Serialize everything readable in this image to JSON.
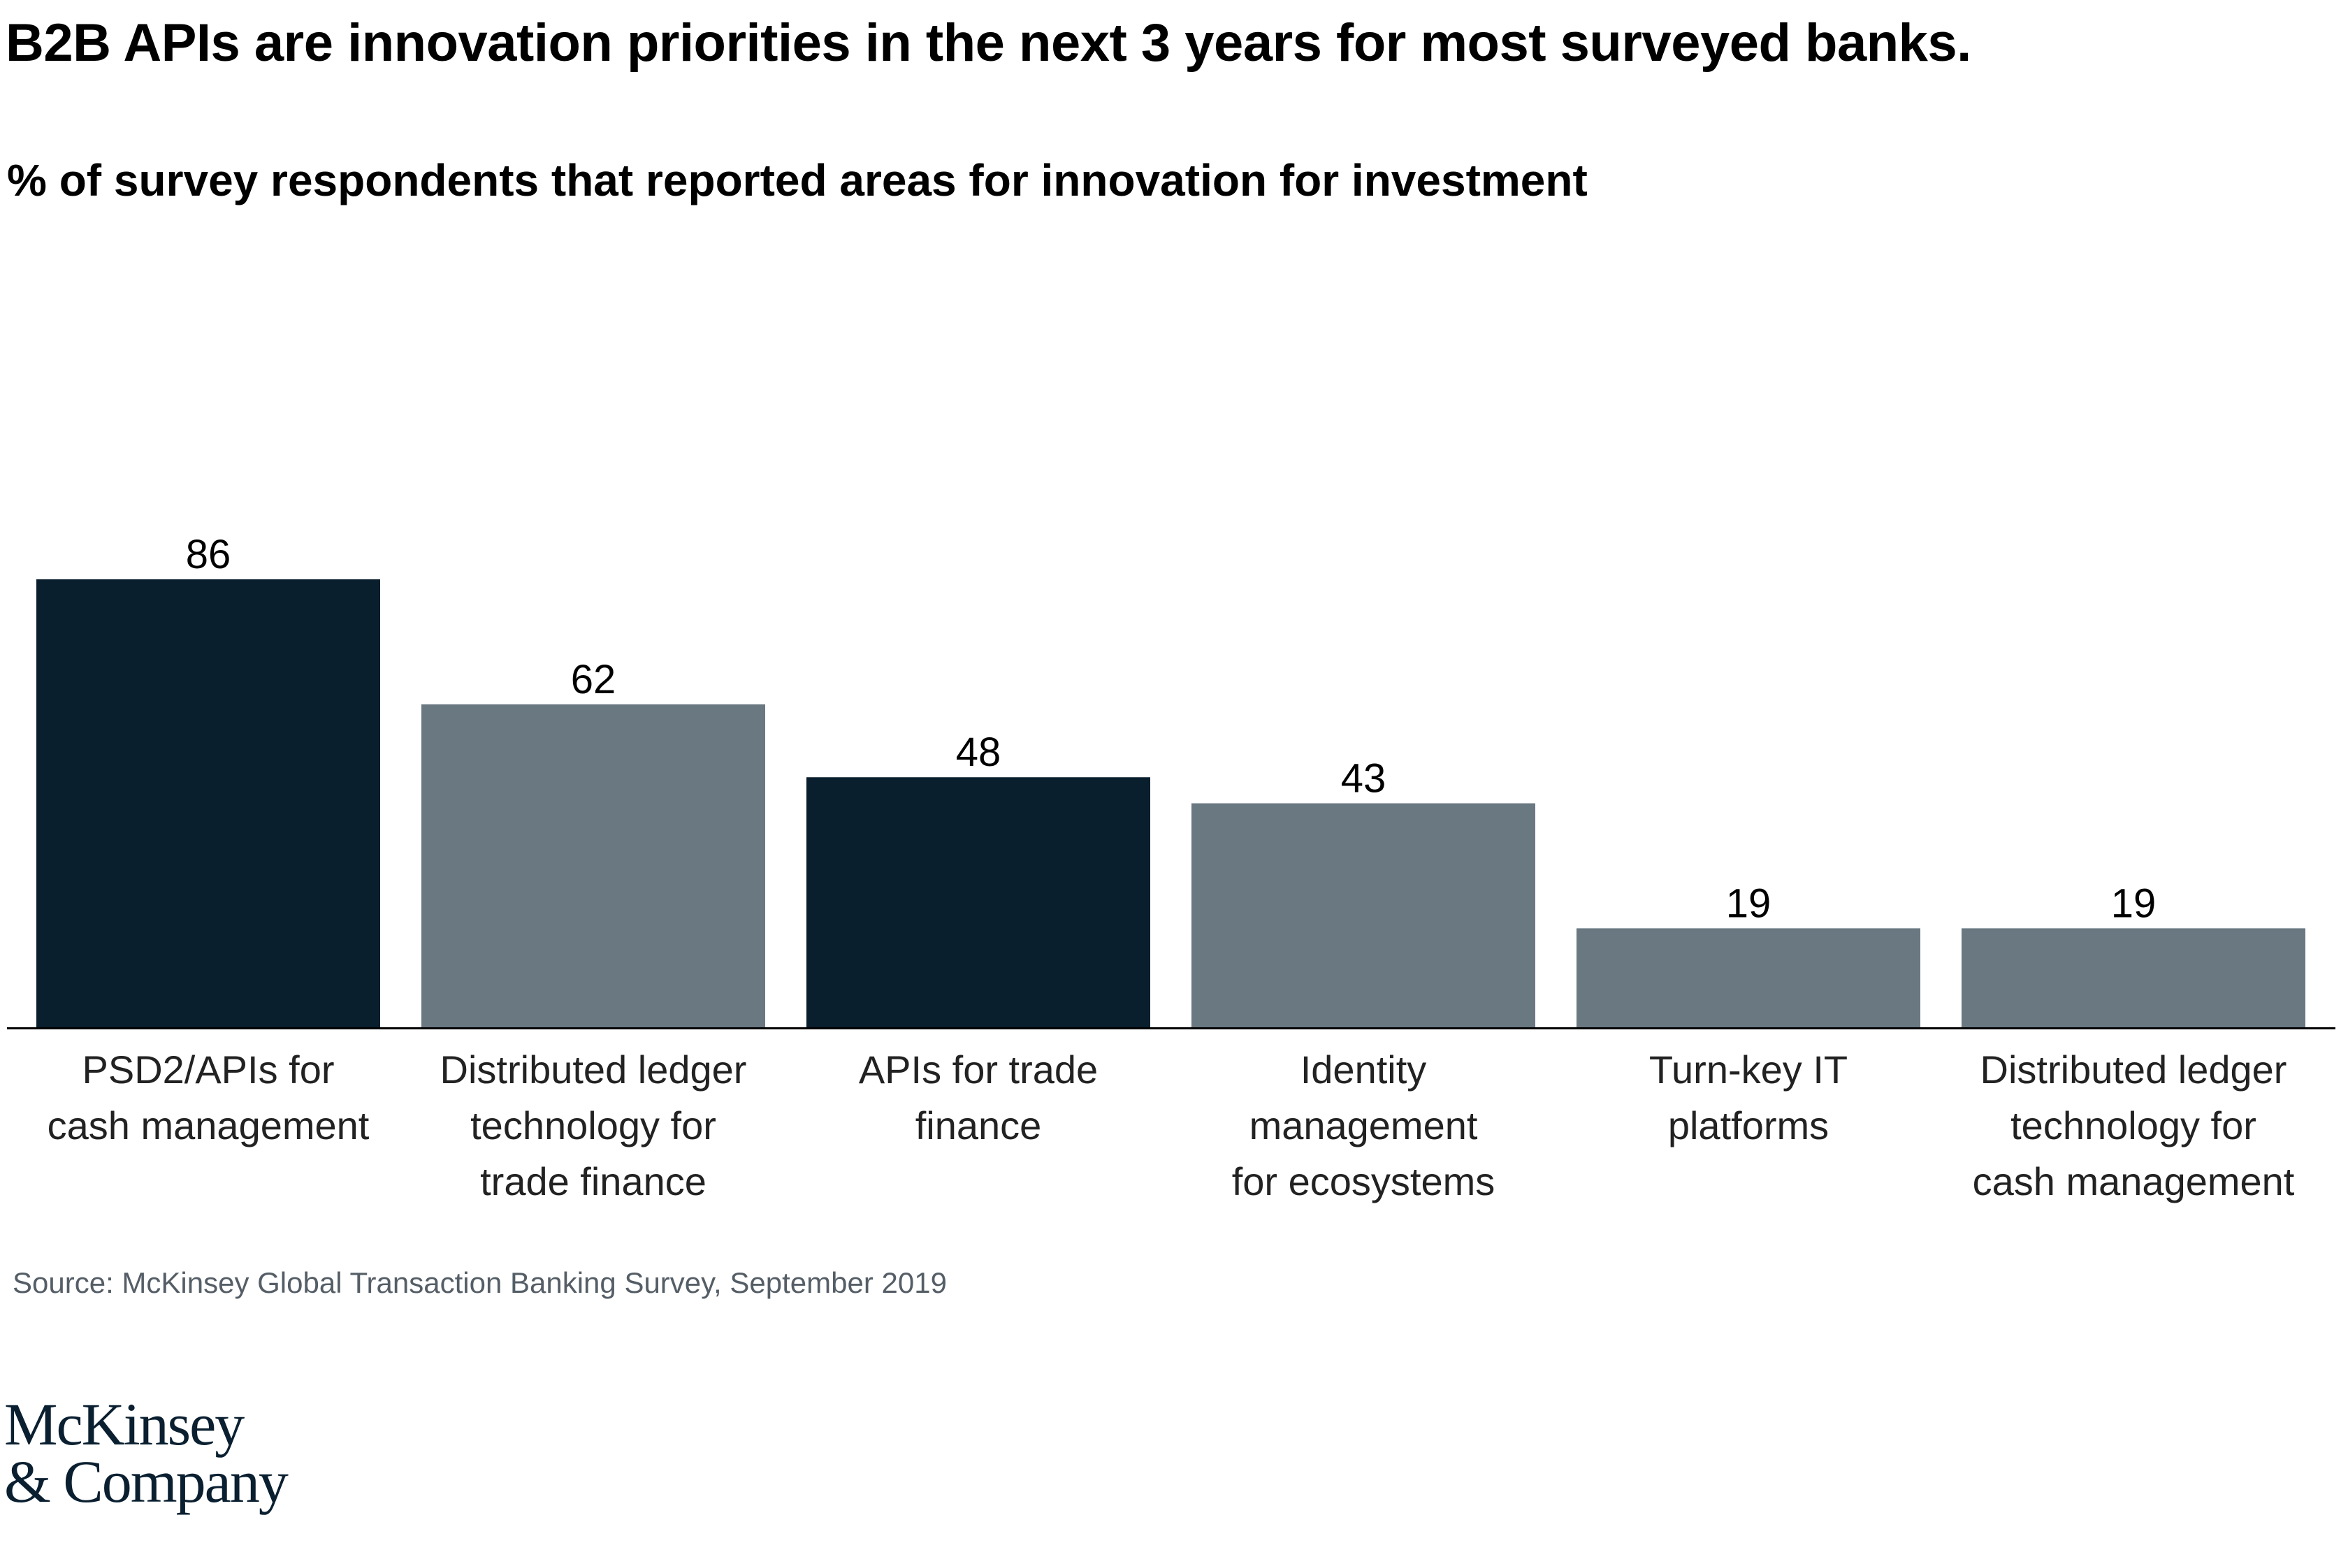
{
  "title": "B2B APIs are innovation priorities in the next 3 years for most surveyed banks.",
  "subtitle": "% of survey respondents that reported areas for innovation for investment",
  "source": "Source: McKinsey Global Transaction Banking Survey, September 2019",
  "logo": {
    "line1": "McKinsey",
    "line2": "& Company"
  },
  "colors": {
    "dark": "#0a1f2e",
    "gray": "#6a7882",
    "axis": "#000000"
  },
  "chart_data": {
    "type": "bar",
    "title": "B2B APIs are innovation priorities in the next 3 years for most surveyed banks.",
    "subtitle": "% of survey respondents that reported areas for innovation for investment",
    "xlabel": "",
    "ylabel": "",
    "ylim": [
      0,
      86
    ],
    "grid": false,
    "categories": [
      [
        "PSD2/APIs for",
        "cash management"
      ],
      [
        "Distributed ledger",
        "technology for",
        "trade finance"
      ],
      [
        "APIs for trade",
        "finance"
      ],
      [
        "Identity",
        "management",
        "for ecosystems"
      ],
      [
        "Turn-key IT",
        "platforms"
      ],
      [
        "Distributed ledger",
        "technology for",
        "cash management"
      ]
    ],
    "values": [
      86,
      62,
      48,
      43,
      19,
      19
    ],
    "bar_colors": [
      "dark",
      "gray",
      "dark",
      "gray",
      "gray",
      "gray"
    ]
  }
}
